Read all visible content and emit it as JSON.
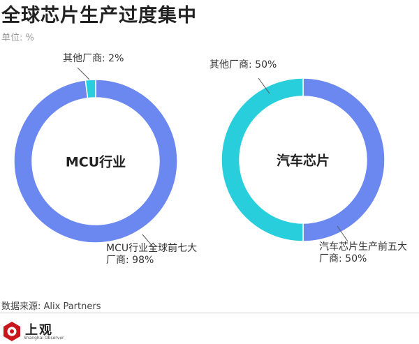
{
  "title": "全球芯片生产过度集中",
  "unit_label": "单位: %",
  "source": "数据来源: Alix Partners",
  "logo": {
    "name": "上观",
    "english": "Shanghai Observer"
  },
  "colors": {
    "primary": "#6b87f0",
    "secondary": "#28cedb"
  },
  "chart_data": [
    {
      "type": "pie",
      "center_label": "MCU行业",
      "categories": [
        "MCU行业全球前七大厂商",
        "其他厂商"
      ],
      "values": [
        98,
        2
      ],
      "colors": [
        "#6b87f0",
        "#28cedb"
      ],
      "labels": [
        {
          "lines": [
            "MCU行业全球前七大",
            "厂商: 98%"
          ]
        },
        {
          "lines": [
            "其他厂商: 2%"
          ]
        }
      ]
    },
    {
      "type": "pie",
      "center_label": "汽车芯片",
      "categories": [
        "汽车芯片生产前五大厂商",
        "其他厂商"
      ],
      "values": [
        50,
        50
      ],
      "colors": [
        "#6b87f0",
        "#28cedb"
      ],
      "labels": [
        {
          "lines": [
            "汽车芯片生产前五大",
            "厂商: 50%"
          ]
        },
        {
          "lines": [
            "其他厂商: 50%"
          ]
        }
      ]
    }
  ]
}
